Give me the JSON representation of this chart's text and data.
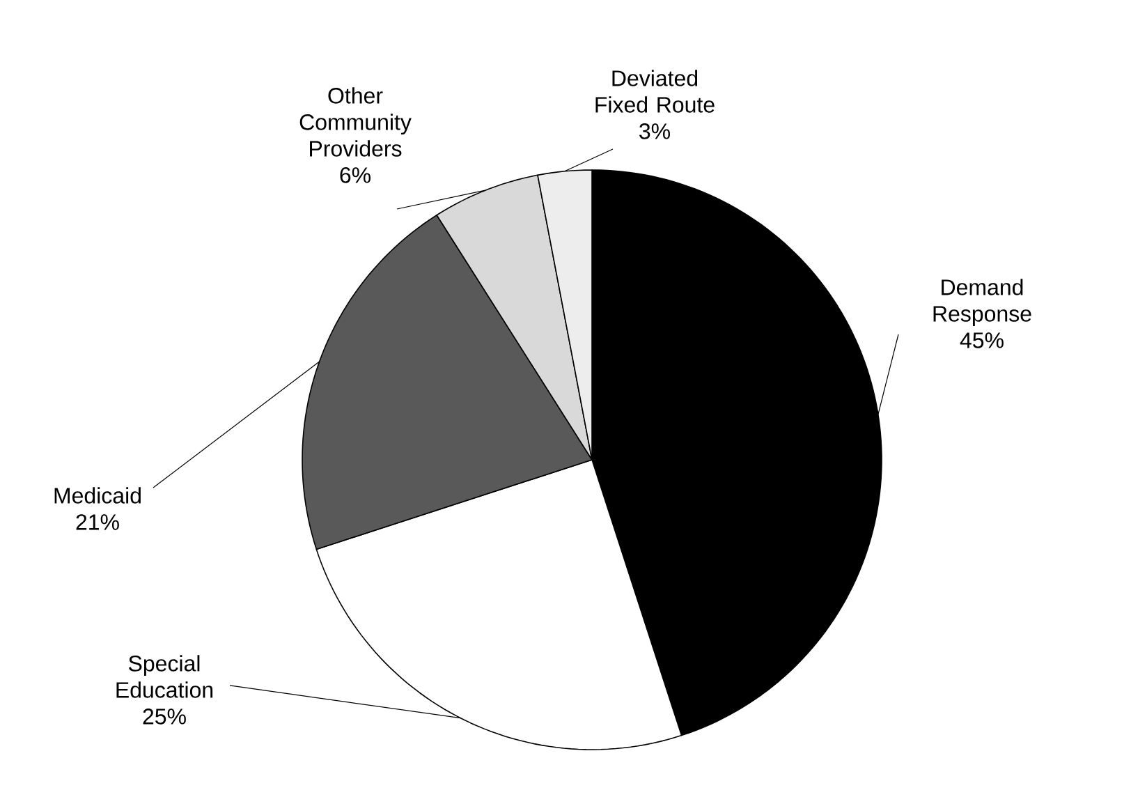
{
  "chart_data": {
    "type": "pie",
    "categories": [
      "Demand Response",
      "Special Education",
      "Medicaid",
      "Other Community Providers",
      "Deviated Fixed Route"
    ],
    "values": [
      45,
      25,
      21,
      6,
      3
    ],
    "value_labels": [
      "45%",
      "25%",
      "21%",
      "6%",
      "3%"
    ],
    "colors": [
      "#000000",
      "#ffffff",
      "#595959",
      "#d9d9d9",
      "#ededed"
    ]
  }
}
